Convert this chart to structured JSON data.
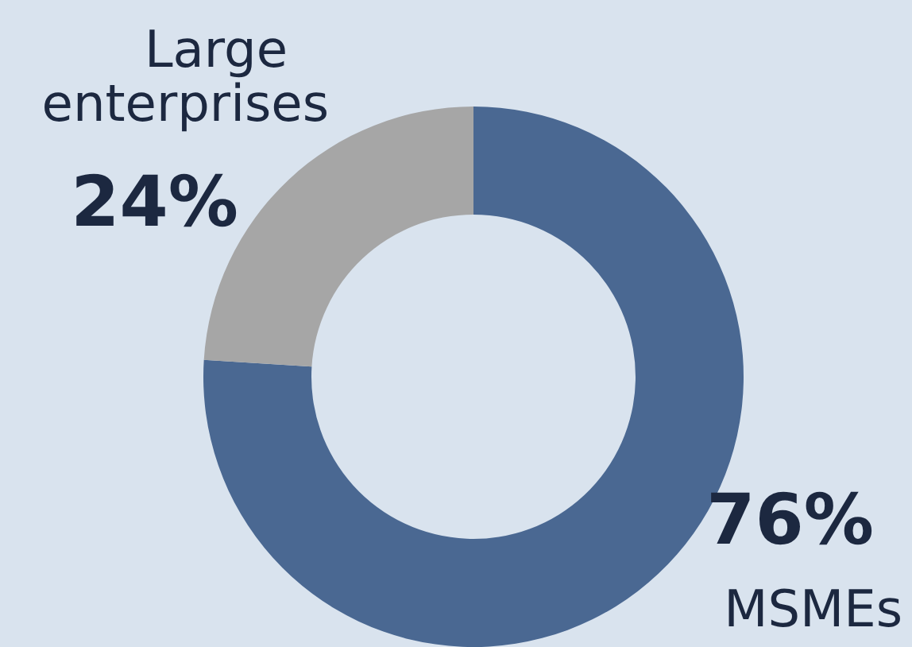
{
  "chart_data": {
    "type": "donut",
    "categories": [
      "MSMEs",
      "Large enterprises"
    ],
    "values": [
      76,
      24
    ],
    "colors": [
      "#4a6892",
      "#a6a6a6"
    ],
    "value_labels": [
      "76%",
      "24%"
    ]
  }
}
